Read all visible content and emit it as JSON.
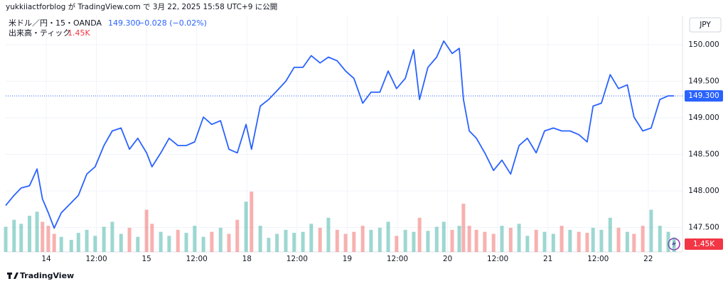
{
  "chart_data": {
    "type": "line",
    "published": "yukkiiactforblog が TradingView.com で 3月 22, 2025 15:58 UTC+9 に公開",
    "title": "米ドル／円・15・OANDA",
    "change_label": "−0.028 (−0.02%)",
    "last_price": {
      "value": 149.3,
      "label": "149.300"
    },
    "currency": "JPY",
    "footer": "TradingView",
    "x": [
      -9.7,
      -7.7,
      -6.0,
      -4.0,
      -2.2,
      -0.9,
      0.5,
      1.9,
      3.6,
      6.0,
      7.7,
      9.7,
      11.7,
      13.8,
      15.8,
      17.9,
      19.9,
      21.9,
      24.0,
      25.3,
      27.4,
      29.4,
      31.5,
      33.5,
      35.5,
      37.6,
      39.6,
      41.7,
      43.7,
      45.7,
      47.8,
      49.1,
      51.2,
      53.2,
      55.2,
      57.3,
      59.3,
      61.4,
      63.4,
      65.5,
      67.5,
      69.6,
      71.6,
      73.6,
      75.7,
      77.7,
      79.8,
      81.8,
      83.8,
      85.9,
      87.9,
      89.3,
      91.3,
      93.4,
      95.1,
      97.1,
      98.8,
      99.8,
      101.2,
      102.9,
      104.9,
      107.0,
      109.0,
      111.1,
      113.1,
      115.1,
      117.2,
      119.2,
      121.3,
      123.3,
      125.3,
      127.4,
      129.4,
      130.8,
      132.8,
      134.9,
      136.9,
      139.0,
      140.6,
      142.7,
      144.7,
      146.8,
      148.8,
      150.2
    ],
    "series": [
      {
        "name": "米ドル／円",
        "color": "#2962ff",
        "values": [
          147.8,
          147.94,
          148.04,
          148.07,
          148.3,
          147.89,
          147.7,
          147.49,
          147.7,
          147.84,
          147.94,
          148.23,
          148.33,
          148.62,
          148.82,
          148.86,
          148.57,
          148.72,
          148.52,
          148.33,
          148.52,
          148.72,
          148.62,
          148.62,
          148.67,
          149.01,
          148.91,
          148.96,
          148.57,
          148.52,
          148.91,
          148.57,
          149.16,
          149.25,
          149.37,
          149.5,
          149.69,
          149.69,
          149.85,
          149.75,
          149.83,
          149.78,
          149.64,
          149.54,
          149.2,
          149.35,
          149.35,
          149.64,
          149.4,
          149.54,
          149.93,
          149.25,
          149.69,
          149.83,
          150.05,
          149.88,
          149.95,
          149.25,
          148.82,
          148.72,
          148.52,
          148.28,
          148.42,
          148.23,
          148.62,
          148.72,
          148.52,
          148.82,
          148.86,
          148.82,
          148.82,
          148.77,
          148.67,
          149.16,
          149.2,
          149.59,
          149.4,
          149.45,
          149.01,
          148.82,
          148.86,
          149.25,
          149.3,
          149.3
        ]
      }
    ],
    "volume": {
      "name": "出来高・ティック",
      "last": {
        "value": 1.45,
        "label": "1.45K"
      },
      "color_up": "#26a69a",
      "color_down": "#ef5350",
      "ylim": [
        0,
        6
      ],
      "values": [
        2.5,
        3.2,
        2.8,
        3.6,
        4.0,
        3.0,
        2.6,
        1.8,
        1.5,
        1.2,
        1.9,
        2.2,
        1.6,
        2.5,
        3.0,
        1.8,
        2.4,
        1.5,
        4.2,
        2.8,
        2.0,
        1.6,
        2.2,
        1.9,
        2.6,
        1.5,
        2.0,
        2.4,
        1.8,
        3.2,
        5.0,
        6.0,
        2.6,
        1.4,
        1.8,
        2.2,
        1.9,
        2.0,
        2.8,
        2.4,
        3.4,
        2.2,
        1.8,
        2.0,
        2.6,
        2.2,
        2.4,
        3.0,
        1.6,
        2.2,
        2.0,
        3.4,
        2.1,
        2.5,
        3.0,
        2.2,
        2.6,
        4.8,
        2.6,
        2.2,
        2.0,
        1.8,
        2.6,
        2.4,
        2.8,
        1.6,
        2.2,
        2.0,
        1.8,
        2.6,
        2.2,
        2.0,
        1.9,
        2.4,
        2.2,
        3.4,
        2.4,
        2.0,
        1.8,
        2.6,
        4.2,
        2.6,
        2.0,
        1.45
      ]
    },
    "xlim": [
      -9.7,
      152.2
    ],
    "xticks": [
      {
        "value": 0,
        "label": "14"
      },
      {
        "value": 12,
        "label": "12:00"
      },
      {
        "value": 24,
        "label": "15"
      },
      {
        "value": 36,
        "label": "12:00"
      },
      {
        "value": 48,
        "label": "18"
      },
      {
        "value": 60,
        "label": "12:00"
      },
      {
        "value": 72,
        "label": "19"
      },
      {
        "value": 84,
        "label": "12:00"
      },
      {
        "value": 96,
        "label": "20"
      },
      {
        "value": 108,
        "label": "12:00"
      },
      {
        "value": 120,
        "label": "21"
      },
      {
        "value": 132,
        "label": "12:00"
      },
      {
        "value": 144,
        "label": "22"
      }
    ],
    "ylim": [
      147.165,
      150.398
    ],
    "yticks": [
      {
        "value": 147.5,
        "label": "147.500"
      },
      {
        "value": 148,
        "label": "148.000"
      },
      {
        "value": 148.5,
        "label": "148.500"
      },
      {
        "value": 149,
        "label": "149.000"
      },
      {
        "value": 149.5,
        "label": "149.500"
      },
      {
        "value": 150,
        "label": "150.000"
      }
    ]
  }
}
